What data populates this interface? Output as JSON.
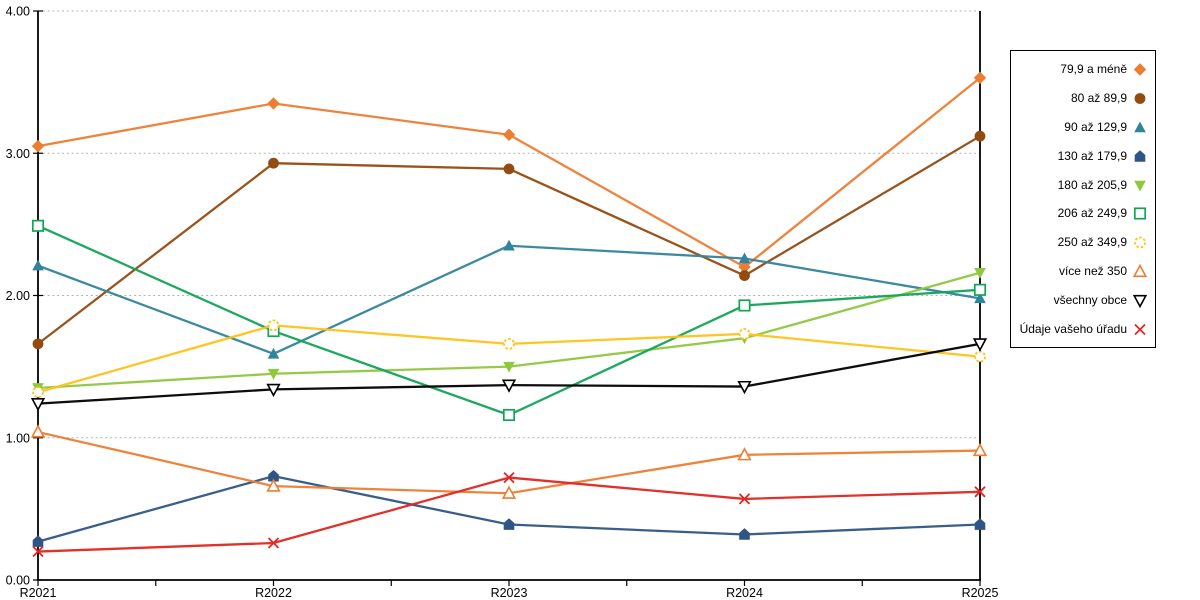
{
  "chart_data": {
    "type": "line",
    "title": "",
    "xlabel": "",
    "ylabel": "",
    "categories": [
      "R2021",
      "R2022",
      "R2023",
      "R2024",
      "R2025"
    ],
    "yticks": [
      "0.00",
      "1.00",
      "2.00",
      "3.00",
      "4.00"
    ],
    "ylim": [
      0,
      4
    ],
    "grid": true,
    "legend_position": "right",
    "series": [
      {
        "name": "79,9 a méně",
        "color": "#ED7D31",
        "marker": "diamond",
        "filled": true,
        "values": [
          3.05,
          3.35,
          3.13,
          2.2,
          3.53
        ]
      },
      {
        "name": "80 až 89,9",
        "color": "#944B10",
        "marker": "circle",
        "filled": true,
        "values": [
          1.66,
          2.93,
          2.89,
          2.14,
          3.12
        ]
      },
      {
        "name": "90 až 129,9",
        "color": "#31849B",
        "marker": "triangle-up",
        "filled": true,
        "values": [
          2.21,
          1.59,
          2.35,
          2.26,
          1.98
        ]
      },
      {
        "name": "130 až 179,9",
        "color": "#2F5584",
        "marker": "pentagon",
        "filled": true,
        "values": [
          0.27,
          0.73,
          0.39,
          0.32,
          0.39
        ]
      },
      {
        "name": "180 až 205,9",
        "color": "#8FC73E",
        "marker": "triangle-down",
        "filled": true,
        "values": [
          1.35,
          1.45,
          1.5,
          1.7,
          2.16
        ]
      },
      {
        "name": "206 až 249,9",
        "color": "#10A456",
        "marker": "square-open",
        "filled": false,
        "values": [
          2.49,
          1.75,
          1.16,
          1.93,
          2.04
        ]
      },
      {
        "name": "250 až 349,9",
        "color": "#FFC217",
        "marker": "circle-open-dashed",
        "filled": false,
        "values": [
          1.32,
          1.79,
          1.66,
          1.73,
          1.57
        ]
      },
      {
        "name": "více než 350",
        "color": "#ED7D31",
        "marker": "triangle-up-open",
        "filled": false,
        "values": [
          1.04,
          0.66,
          0.61,
          0.88,
          0.91
        ]
      },
      {
        "name": "všechny obce",
        "color": "#000000",
        "marker": "triangle-down-open",
        "filled": false,
        "values": [
          1.24,
          1.34,
          1.37,
          1.36,
          1.66
        ]
      },
      {
        "name": "Údaje vašeho úřadu",
        "color": "#E02620",
        "marker": "x-cross",
        "filled": false,
        "values": [
          0.2,
          0.26,
          0.72,
          0.57,
          0.62
        ]
      }
    ]
  }
}
